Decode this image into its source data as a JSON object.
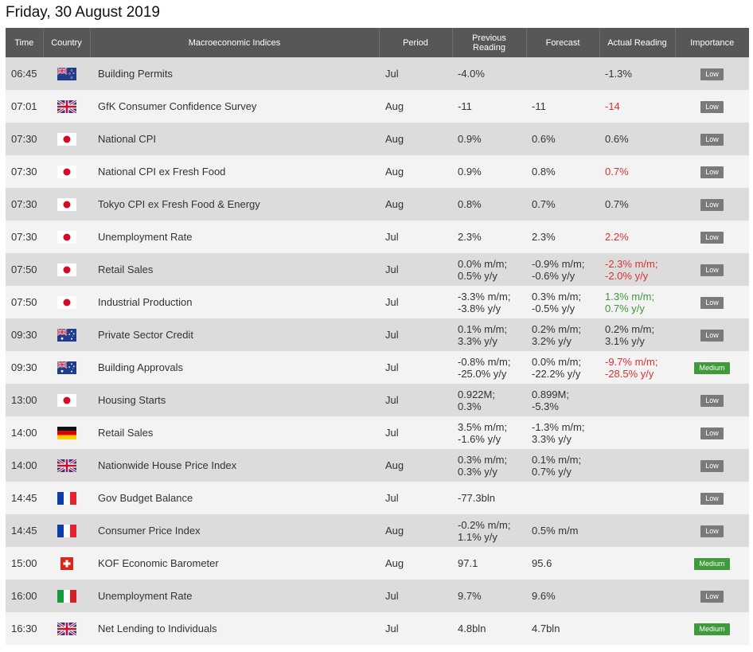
{
  "page_title": "Friday, 30 August 2019",
  "headers": {
    "time": "Time",
    "country": "Country",
    "index": "Macroeconomic Indices",
    "period": "Period",
    "previous": "Previous Reading",
    "forecast": "Forecast",
    "actual": "Actual Reading",
    "importance": "Importance"
  },
  "colors": {
    "header_bg": "#575757",
    "row_dark": "#dcdcdc",
    "row_light": "#f3f3f3",
    "negative": "#d83232",
    "positive": "#3a9a3a",
    "badge_low": "#7a7a7a",
    "badge_medium": "#3e9a3a"
  },
  "rows": [
    {
      "time": "06:45",
      "flag": "new-zealand-flag-icon",
      "index": "Building Permits",
      "period": "Jul",
      "previous": "-4.0%",
      "forecast": "",
      "actual": "-1.3%",
      "actual_tone": "neutral",
      "importance": "Low"
    },
    {
      "time": "07:01",
      "flag": "united-kingdom-flag-icon",
      "index": "GfK Consumer Confidence Survey",
      "period": "Aug",
      "previous": "-11",
      "forecast": "-11",
      "actual": "-14",
      "actual_tone": "negative",
      "importance": "Low"
    },
    {
      "time": "07:30",
      "flag": "japan-flag-icon",
      "index": "National CPI",
      "period": "Aug",
      "previous": "0.9%",
      "forecast": "0.6%",
      "actual": "0.6%",
      "actual_tone": "neutral",
      "importance": "Low"
    },
    {
      "time": "07:30",
      "flag": "japan-flag-icon",
      "index": "National CPI ex Fresh Food",
      "period": "Aug",
      "previous": "0.9%",
      "forecast": "0.8%",
      "actual": "0.7%",
      "actual_tone": "negative",
      "importance": "Low"
    },
    {
      "time": "07:30",
      "flag": "japan-flag-icon",
      "index": "Tokyo CPI ex Fresh Food & Energy",
      "period": "Aug",
      "previous": "0.8%",
      "forecast": "0.7%",
      "actual": "0.7%",
      "actual_tone": "neutral",
      "importance": "Low"
    },
    {
      "time": "07:30",
      "flag": "japan-flag-icon",
      "index": "Unemployment Rate",
      "period": "Jul",
      "previous": "2.3%",
      "forecast": "2.3%",
      "actual": "2.2%",
      "actual_tone": "negative",
      "importance": "Low"
    },
    {
      "time": "07:50",
      "flag": "japan-flag-icon",
      "index": "Retail Sales",
      "period": "Jul",
      "previous": "0.0% m/m;\n0.5% y/y",
      "forecast": "-0.9% m/m;\n-0.6% y/y",
      "actual": "-2.3% m/m;\n-2.0% y/y",
      "actual_tone": "negative",
      "importance": "Low"
    },
    {
      "time": "07:50",
      "flag": "japan-flag-icon",
      "index": "Industrial Production",
      "period": "Jul",
      "previous": "-3.3% m/m;\n-3.8% y/y",
      "forecast": "0.3% m/m;\n-0.5% y/y",
      "actual": "1.3% m/m;\n0.7% y/y",
      "actual_tone": "positive",
      "importance": "Low"
    },
    {
      "time": "09:30",
      "flag": "australia-flag-icon",
      "index": "Private Sector Credit",
      "period": "Jul",
      "previous": "0.1% m/m;\n3.3% y/y",
      "forecast": "0.2% m/m;\n3.2% y/y",
      "actual": "0.2% m/m;\n3.1% y/y",
      "actual_tone": "neutral",
      "importance": "Low"
    },
    {
      "time": "09:30",
      "flag": "australia-flag-icon",
      "index": "Building Approvals",
      "period": "Jul",
      "previous": "-0.8% m/m;\n-25.0% y/y",
      "forecast": "0.0% m/m;\n-22.2% y/y",
      "actual": "-9.7% m/m;\n-28.5% y/y",
      "actual_tone": "negative",
      "importance": "Medium"
    },
    {
      "time": "13:00",
      "flag": "japan-flag-icon",
      "index": "Housing Starts",
      "period": "Jul",
      "previous": "0.922M;\n0.3%",
      "forecast": "0.899M;\n-5.3%",
      "actual": "",
      "actual_tone": "neutral",
      "importance": "Low"
    },
    {
      "time": "14:00",
      "flag": "germany-flag-icon",
      "index": "Retail Sales",
      "period": "Jul",
      "previous": "3.5% m/m;\n-1.6% y/y",
      "forecast": "-1.3% m/m;\n3.3% y/y",
      "actual": "",
      "actual_tone": "neutral",
      "importance": "Low"
    },
    {
      "time": "14:00",
      "flag": "united-kingdom-flag-icon",
      "index": "Nationwide House Price Index",
      "period": "Aug",
      "previous": "0.3% m/m;\n0.3% y/y",
      "forecast": "0.1% m/m;\n0.7% y/y",
      "actual": "",
      "actual_tone": "neutral",
      "importance": "Low"
    },
    {
      "time": "14:45",
      "flag": "france-flag-icon",
      "index": "Gov Budget Balance",
      "period": "Jul",
      "previous": "-77.3bln",
      "forecast": "",
      "actual": "",
      "actual_tone": "neutral",
      "importance": "Low"
    },
    {
      "time": "14:45",
      "flag": "france-flag-icon",
      "index": "Consumer Price Index",
      "period": "Aug",
      "previous": "-0.2% m/m;\n1.1% y/y",
      "forecast": "0.5% m/m",
      "actual": "",
      "actual_tone": "neutral",
      "importance": "Low"
    },
    {
      "time": "15:00",
      "flag": "switzerland-flag-icon",
      "index": "KOF Economic Barometer",
      "period": "Aug",
      "previous": "97.1",
      "forecast": "95.6",
      "actual": "",
      "actual_tone": "neutral",
      "importance": "Medium"
    },
    {
      "time": "16:00",
      "flag": "italy-flag-icon",
      "index": "Unemployment Rate",
      "period": "Jul",
      "previous": "9.7%",
      "forecast": "9.6%",
      "actual": "",
      "actual_tone": "neutral",
      "importance": "Low"
    },
    {
      "time": "16:30",
      "flag": "united-kingdom-flag-icon",
      "index": "Net Lending to Individuals",
      "period": "Jul",
      "previous": "4.8bln",
      "forecast": "4.7bln",
      "actual": "",
      "actual_tone": "neutral",
      "importance": "Medium"
    }
  ]
}
